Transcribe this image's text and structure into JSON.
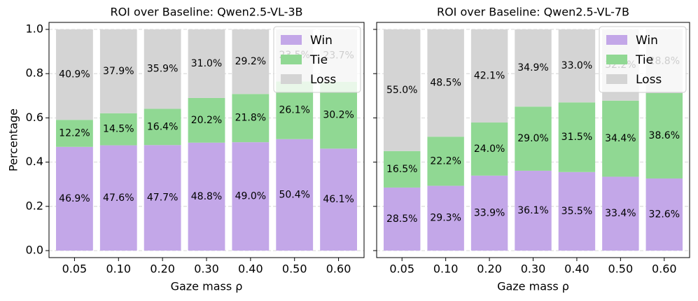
{
  "chart_data": [
    {
      "type": "bar",
      "stacked": true,
      "title": "ROI over Baseline: Qwen2.5-VL-3B",
      "x_label": "Gaze mass ρ",
      "y_label": "Percentage",
      "categories": [
        "0.05",
        "0.10",
        "0.20",
        "0.30",
        "0.40",
        "0.50",
        "0.60"
      ],
      "series": [
        {
          "name": "Win",
          "color": "#c3a7e8",
          "values": [
            0.469,
            0.476,
            0.477,
            0.488,
            0.49,
            0.504,
            0.461
          ],
          "value_labels": [
            "46.9%",
            "47.6%",
            "47.7%",
            "48.8%",
            "49.0%",
            "50.4%",
            "46.1%"
          ]
        },
        {
          "name": "Tie",
          "color": "#90d893",
          "values": [
            0.122,
            0.145,
            0.164,
            0.202,
            0.218,
            0.261,
            0.302
          ],
          "value_labels": [
            "12.2%",
            "14.5%",
            "16.4%",
            "20.2%",
            "21.8%",
            "26.1%",
            "30.2%"
          ]
        },
        {
          "name": "Loss",
          "color": "#d4d4d4",
          "values": [
            0.409,
            0.379,
            0.359,
            0.31,
            0.292,
            0.235,
            0.237
          ],
          "value_labels": [
            "40.9%",
            "37.9%",
            "35.9%",
            "31.0%",
            "29.2%",
            "23.5%",
            "23.7%"
          ]
        }
      ],
      "ylim": [
        0,
        1.0
      ],
      "yticks": [
        {
          "value": 0,
          "label": "0.0"
        },
        0.2,
        0.4,
        0.6,
        0.8,
        {
          "value": 1.0,
          "label": "1.0"
        }
      ],
      "grid": true,
      "legend": "upper right"
    },
    {
      "type": "bar",
      "stacked": true,
      "title": "ROI over Baseline: Qwen2.5-VL-7B",
      "x_label": "Gaze mass ρ",
      "categories": [
        "0.05",
        "0.10",
        "0.20",
        "0.30",
        "0.40",
        "0.50",
        "0.60"
      ],
      "series": [
        {
          "name": "Win",
          "color": "#c3a7e8",
          "values": [
            0.285,
            0.293,
            0.339,
            0.361,
            0.355,
            0.334,
            0.326
          ],
          "value_labels": [
            "28.5%",
            "29.3%",
            "33.9%",
            "36.1%",
            "35.5%",
            "33.4%",
            "32.6%"
          ]
        },
        {
          "name": "Tie",
          "color": "#90d893",
          "values": [
            0.165,
            0.222,
            0.24,
            0.29,
            0.315,
            0.344,
            0.386
          ],
          "value_labels": [
            "16.5%",
            "22.2%",
            "24.0%",
            "29.0%",
            "31.5%",
            "34.4%",
            "38.6%"
          ]
        },
        {
          "name": "Loss",
          "color": "#d4d4d4",
          "values": [
            0.55,
            0.485,
            0.421,
            0.349,
            0.33,
            0.322,
            0.288
          ],
          "value_labels": [
            "55.0%",
            "48.5%",
            "42.1%",
            "34.9%",
            "33.0%",
            "32.2%",
            "28.8%"
          ]
        }
      ],
      "ylim": [
        0,
        1.0
      ],
      "yticks": [
        0,
        0.2,
        0.4,
        0.6,
        0.8,
        1.0
      ],
      "grid": true,
      "legend": "upper right"
    }
  ]
}
